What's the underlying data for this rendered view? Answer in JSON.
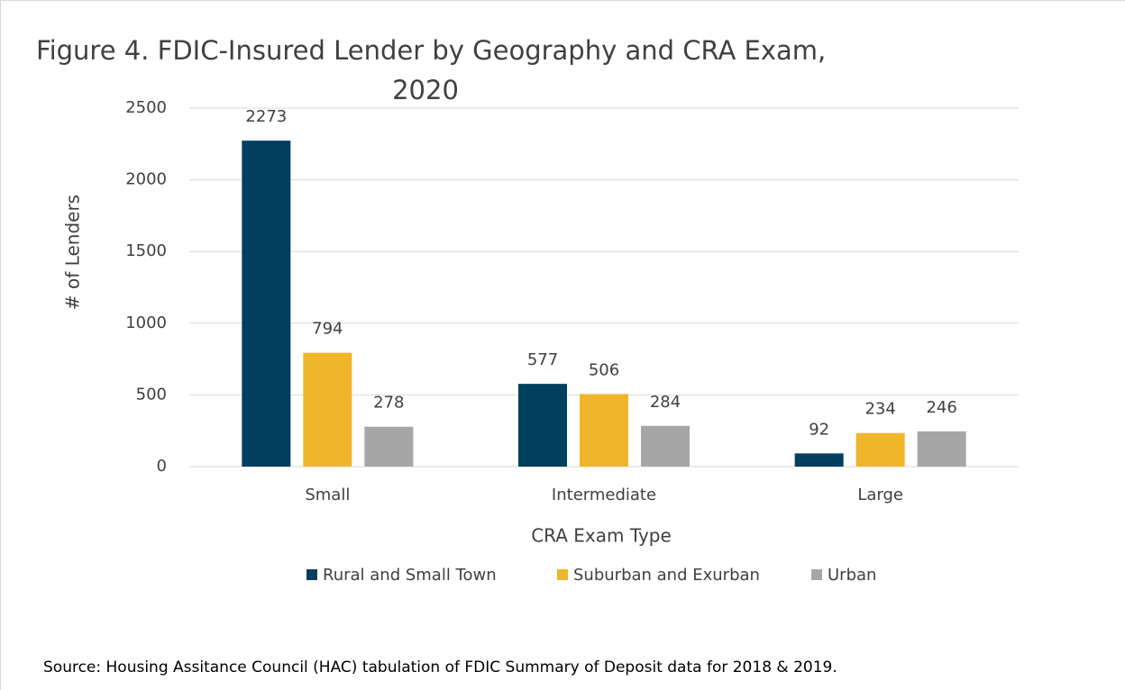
{
  "chart_data": {
    "type": "bar",
    "title": [
      "Figure 4. FDIC-Insured Lender by Geography and CRA Exam,",
      "2020"
    ],
    "categories": [
      "Small",
      "Intermediate",
      "Large"
    ],
    "series": [
      {
        "name": "Rural and Small Town",
        "color": "#003f5f",
        "values": [
          2273,
          577,
          92
        ]
      },
      {
        "name": "Suburban and Exurban",
        "color": "#f0b62b",
        "values": [
          794,
          506,
          234
        ]
      },
      {
        "name": "Urban",
        "color": "#a6a6a6",
        "values": [
          278,
          284,
          246
        ]
      }
    ],
    "ylim": [
      0,
      2500
    ],
    "yticks": [
      0,
      500,
      1000,
      1500,
      2000,
      2500
    ],
    "grid": true,
    "xlabel": "CRA Exam Type",
    "ylabel": "# of Lenders",
    "legend": "bottom",
    "source": "Source: Housing Assitance Council (HAC) tabulation of FDIC Summary of Deposit data for 2018 & 2019."
  }
}
